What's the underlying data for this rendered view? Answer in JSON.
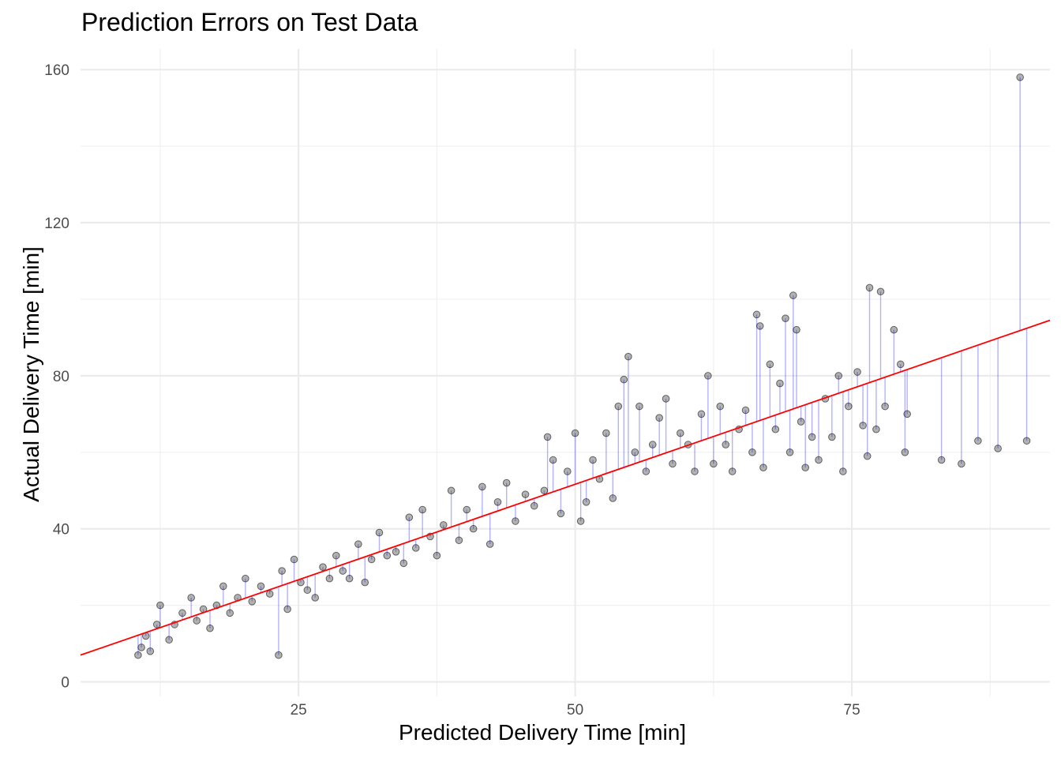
{
  "chart_data": {
    "type": "scatter",
    "title": "Prediction Errors on Test Data",
    "xlabel": "Predicted Delivery Time [min]",
    "ylabel": "Actual Delivery Time [min]",
    "xlim": [
      5.3,
      92.9
    ],
    "ylim": [
      -3.8,
      165.4
    ],
    "x_ticks": [
      25,
      50,
      75
    ],
    "x_tick_labels": [
      "25",
      "50",
      "75"
    ],
    "y_ticks": [
      0,
      40,
      80,
      120,
      160
    ],
    "y_tick_labels": [
      "0",
      "40",
      "80",
      "120",
      "160"
    ],
    "grid": true,
    "legend": "none",
    "colors": {
      "points": "#000000",
      "error_segments": "#0000ff",
      "fit_line": "#ff0000"
    },
    "fit_line": {
      "x": [
        5.3,
        92.9
      ],
      "y": [
        7.0,
        94.5
      ]
    },
    "points": [
      {
        "x": 10.5,
        "y": 7
      },
      {
        "x": 10.8,
        "y": 9
      },
      {
        "x": 11.2,
        "y": 12
      },
      {
        "x": 11.6,
        "y": 8
      },
      {
        "x": 12.2,
        "y": 15
      },
      {
        "x": 12.5,
        "y": 20
      },
      {
        "x": 13.3,
        "y": 11
      },
      {
        "x": 13.8,
        "y": 15
      },
      {
        "x": 14.5,
        "y": 18
      },
      {
        "x": 15.3,
        "y": 22
      },
      {
        "x": 15.8,
        "y": 16
      },
      {
        "x": 16.4,
        "y": 19
      },
      {
        "x": 17.0,
        "y": 14
      },
      {
        "x": 17.6,
        "y": 20
      },
      {
        "x": 18.2,
        "y": 25
      },
      {
        "x": 18.8,
        "y": 18
      },
      {
        "x": 19.5,
        "y": 22
      },
      {
        "x": 20.2,
        "y": 27
      },
      {
        "x": 20.8,
        "y": 21
      },
      {
        "x": 21.6,
        "y": 25
      },
      {
        "x": 22.4,
        "y": 23
      },
      {
        "x": 23.2,
        "y": 7
      },
      {
        "x": 23.5,
        "y": 29
      },
      {
        "x": 24.0,
        "y": 19
      },
      {
        "x": 24.6,
        "y": 32
      },
      {
        "x": 25.2,
        "y": 26
      },
      {
        "x": 25.8,
        "y": 24
      },
      {
        "x": 26.5,
        "y": 22
      },
      {
        "x": 27.2,
        "y": 30
      },
      {
        "x": 27.8,
        "y": 27
      },
      {
        "x": 28.4,
        "y": 33
      },
      {
        "x": 29.0,
        "y": 29
      },
      {
        "x": 29.6,
        "y": 27
      },
      {
        "x": 30.4,
        "y": 36
      },
      {
        "x": 31.0,
        "y": 26
      },
      {
        "x": 31.6,
        "y": 32
      },
      {
        "x": 32.3,
        "y": 39
      },
      {
        "x": 33.0,
        "y": 33
      },
      {
        "x": 33.8,
        "y": 34
      },
      {
        "x": 34.5,
        "y": 31
      },
      {
        "x": 35.0,
        "y": 43
      },
      {
        "x": 35.6,
        "y": 35
      },
      {
        "x": 36.2,
        "y": 45
      },
      {
        "x": 36.9,
        "y": 38
      },
      {
        "x": 37.5,
        "y": 33
      },
      {
        "x": 38.1,
        "y": 41
      },
      {
        "x": 38.8,
        "y": 50
      },
      {
        "x": 39.5,
        "y": 37
      },
      {
        "x": 40.2,
        "y": 45
      },
      {
        "x": 40.8,
        "y": 40
      },
      {
        "x": 41.6,
        "y": 51
      },
      {
        "x": 42.3,
        "y": 36
      },
      {
        "x": 43.0,
        "y": 47
      },
      {
        "x": 43.8,
        "y": 52
      },
      {
        "x": 44.6,
        "y": 42
      },
      {
        "x": 45.5,
        "y": 49
      },
      {
        "x": 46.3,
        "y": 46
      },
      {
        "x": 47.2,
        "y": 50
      },
      {
        "x": 47.5,
        "y": 64
      },
      {
        "x": 48.0,
        "y": 58
      },
      {
        "x": 48.7,
        "y": 44
      },
      {
        "x": 49.3,
        "y": 55
      },
      {
        "x": 50.0,
        "y": 65
      },
      {
        "x": 50.5,
        "y": 42
      },
      {
        "x": 51.0,
        "y": 47
      },
      {
        "x": 51.6,
        "y": 58
      },
      {
        "x": 52.2,
        "y": 53
      },
      {
        "x": 52.8,
        "y": 65
      },
      {
        "x": 53.4,
        "y": 48
      },
      {
        "x": 53.9,
        "y": 72
      },
      {
        "x": 54.4,
        "y": 79
      },
      {
        "x": 54.8,
        "y": 85
      },
      {
        "x": 55.4,
        "y": 60
      },
      {
        "x": 55.8,
        "y": 72
      },
      {
        "x": 56.4,
        "y": 55
      },
      {
        "x": 57.0,
        "y": 62
      },
      {
        "x": 57.6,
        "y": 69
      },
      {
        "x": 58.2,
        "y": 74
      },
      {
        "x": 58.8,
        "y": 57
      },
      {
        "x": 59.5,
        "y": 65
      },
      {
        "x": 60.2,
        "y": 62
      },
      {
        "x": 60.8,
        "y": 55
      },
      {
        "x": 61.4,
        "y": 70
      },
      {
        "x": 62.0,
        "y": 80
      },
      {
        "x": 62.5,
        "y": 57
      },
      {
        "x": 63.1,
        "y": 72
      },
      {
        "x": 63.6,
        "y": 62
      },
      {
        "x": 64.2,
        "y": 55
      },
      {
        "x": 64.8,
        "y": 66
      },
      {
        "x": 65.4,
        "y": 71
      },
      {
        "x": 66.0,
        "y": 60
      },
      {
        "x": 66.4,
        "y": 96
      },
      {
        "x": 66.7,
        "y": 93
      },
      {
        "x": 67.0,
        "y": 56
      },
      {
        "x": 67.6,
        "y": 83
      },
      {
        "x": 68.1,
        "y": 66
      },
      {
        "x": 68.5,
        "y": 78
      },
      {
        "x": 69.0,
        "y": 95
      },
      {
        "x": 69.4,
        "y": 60
      },
      {
        "x": 69.7,
        "y": 101
      },
      {
        "x": 70.0,
        "y": 92
      },
      {
        "x": 70.4,
        "y": 68
      },
      {
        "x": 70.8,
        "y": 56
      },
      {
        "x": 71.4,
        "y": 64
      },
      {
        "x": 72.0,
        "y": 58
      },
      {
        "x": 72.6,
        "y": 74
      },
      {
        "x": 73.2,
        "y": 64
      },
      {
        "x": 73.8,
        "y": 80
      },
      {
        "x": 74.2,
        "y": 55
      },
      {
        "x": 74.7,
        "y": 72
      },
      {
        "x": 75.5,
        "y": 81
      },
      {
        "x": 76.0,
        "y": 67
      },
      {
        "x": 76.4,
        "y": 59
      },
      {
        "x": 76.6,
        "y": 103
      },
      {
        "x": 77.2,
        "y": 66
      },
      {
        "x": 77.6,
        "y": 102
      },
      {
        "x": 78.0,
        "y": 72
      },
      {
        "x": 78.8,
        "y": 92
      },
      {
        "x": 79.4,
        "y": 83
      },
      {
        "x": 79.8,
        "y": 60
      },
      {
        "x": 80.0,
        "y": 70
      },
      {
        "x": 83.1,
        "y": 58
      },
      {
        "x": 84.9,
        "y": 57
      },
      {
        "x": 86.4,
        "y": 63
      },
      {
        "x": 88.2,
        "y": 61
      },
      {
        "x": 90.2,
        "y": 158
      },
      {
        "x": 90.8,
        "y": 63
      }
    ]
  }
}
